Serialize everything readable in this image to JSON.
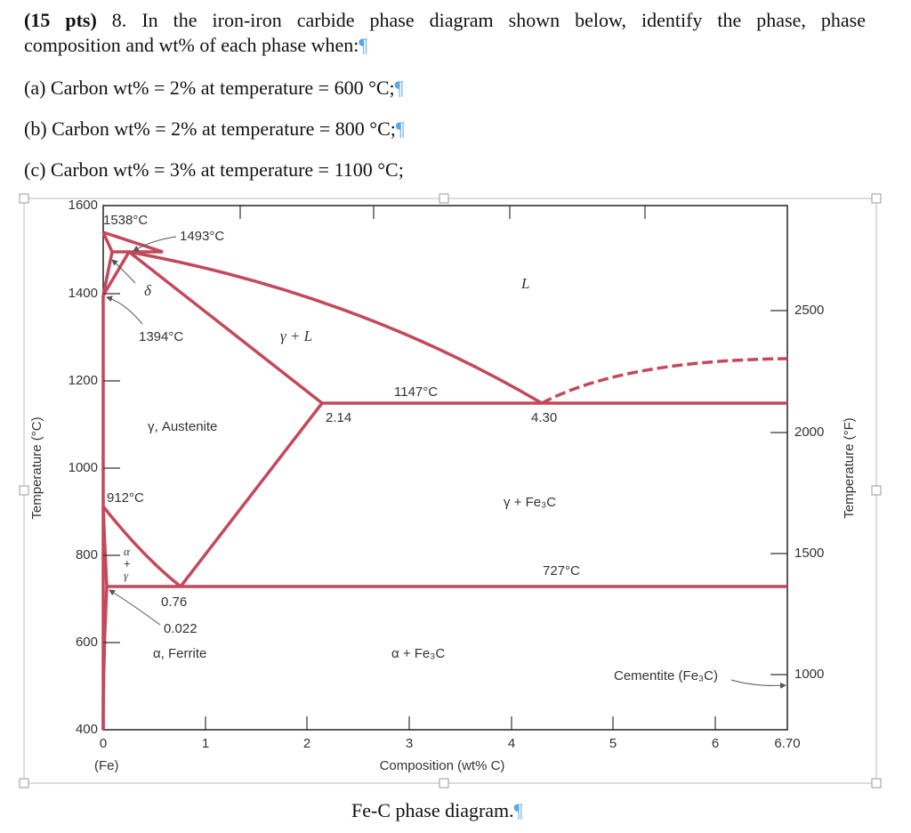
{
  "question": {
    "points": "(15 pts)",
    "line1": " 8. In the iron-iron carbide phase diagram shown below, identify the phase, phase",
    "line2": "composition and wt% of each phase when:",
    "items": [
      "(a) Carbon wt% = 2% at temperature = 600 °C;",
      "(b) Carbon wt% = 2% at temperature = 800 °C;",
      "(c) Carbon wt% = 3% at temperature = 1100 °C;"
    ]
  },
  "pilcrow": "¶",
  "figure": {
    "y_axis_left": {
      "label": "Temperature (°C)",
      "ticks": [
        "1600",
        "1400",
        "1200",
        "1000",
        "800",
        "600",
        "400"
      ]
    },
    "y_axis_right": {
      "label": "Temperature (°F)",
      "ticks": [
        "2500",
        "2000",
        "1500",
        "1000"
      ]
    },
    "x_axis": {
      "label": "Composition (wt% C)",
      "ticks": [
        "0",
        "1",
        "2",
        "3",
        "4",
        "5",
        "6",
        "6.70"
      ],
      "origin_note": "(Fe)"
    },
    "annotations": {
      "t1538": "1538°C",
      "t1493": "1493°C",
      "delta": "δ",
      "t1394": "1394°C",
      "gamma_l": "γ + L",
      "liquid": "L",
      "t1147": "1147°C",
      "c214": "2.14",
      "c430": "4.30",
      "austenite": "γ, Austenite",
      "t912": "912°C",
      "gamma_fe3c": "γ + Fe₃C",
      "alpha_plus_gamma": [
        "α",
        "+",
        "γ"
      ],
      "t727": "727°C",
      "c076": "0.76",
      "c0022": "0.022",
      "ferrite": "α, Ferrite",
      "alpha_fe3c": "α + Fe₃C",
      "cementite": "Cementite (Fe₃C)"
    }
  },
  "caption": "Fe-C phase diagram."
}
